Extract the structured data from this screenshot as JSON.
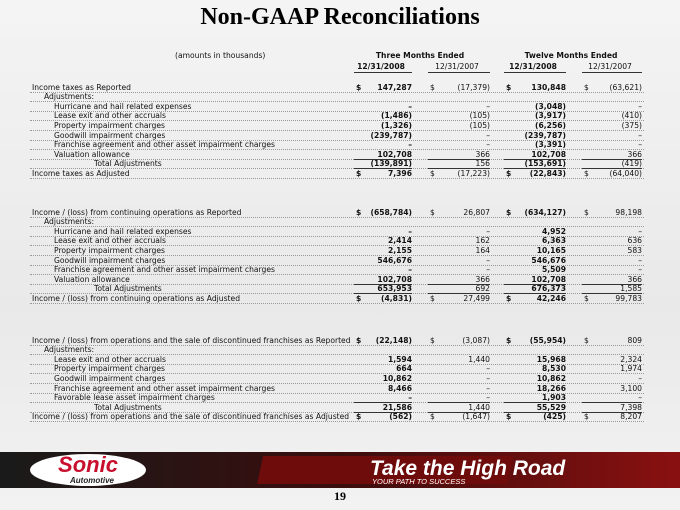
{
  "header": {
    "title": "Non-GAAP Reconciliations",
    "note": "(amounts in thousands)"
  },
  "table": {
    "currency": "$",
    "groups": [
      "Three Months Ended",
      "Twelve Months Ended"
    ],
    "columns": [
      "12/31/2008",
      "12/31/2007",
      "12/31/2008",
      "12/31/2007"
    ],
    "sections": [
      {
        "reported": {
          "label": "Income taxes as Reported",
          "cells": [
            "147,287",
            "(17,379)",
            "130,848",
            "(63,621)"
          ]
        },
        "adjustments_label": "Adjustments:",
        "items": [
          {
            "label": "Hurricane and hail related expenses",
            "cells": [
              "–",
              "–",
              "(3,048)",
              "–"
            ]
          },
          {
            "label": "Lease exit and other accruals",
            "cells": [
              "(1,486)",
              "(105)",
              "(3,917)",
              "(410)"
            ]
          },
          {
            "label": "Property impairment charges",
            "cells": [
              "(1,326)",
              "(105)",
              "(6,256)",
              "(375)"
            ]
          },
          {
            "label": "Goodwill impairment charges",
            "cells": [
              "(239,787)",
              "–",
              "(239,787)",
              "–"
            ]
          },
          {
            "label": "Franchise agreement and other asset impairment charges",
            "cells": [
              "–",
              "–",
              "(3,391)",
              "–"
            ]
          },
          {
            "label": "Valuation allowance",
            "cells": [
              "102,708",
              "366",
              "102,708",
              "366"
            ]
          }
        ],
        "total": {
          "label": "Total Adjustments",
          "cells": [
            "(139,891)",
            "156",
            "(153,691)",
            "(419)"
          ]
        },
        "adjusted": {
          "label": "Income taxes as Adjusted",
          "cells": [
            "7,396",
            "(17,223)",
            "(22,843)",
            "(64,040)"
          ]
        }
      },
      {
        "reported": {
          "label": "Income / (loss) from continuing operations as Reported",
          "cells": [
            "(658,784)",
            "26,807",
            "(634,127)",
            "98,198"
          ]
        },
        "adjustments_label": "Adjustments:",
        "items": [
          {
            "label": "Hurricane and hail related expenses",
            "cells": [
              "–",
              "–",
              "4,952",
              "–"
            ]
          },
          {
            "label": "Lease exit and other accruals",
            "cells": [
              "2,414",
              "162",
              "6,363",
              "636"
            ]
          },
          {
            "label": "Property impairment charges",
            "cells": [
              "2,155",
              "164",
              "10,165",
              "583"
            ]
          },
          {
            "label": "Goodwill impairment charges",
            "cells": [
              "546,676",
              "–",
              "546,676",
              "–"
            ]
          },
          {
            "label": "Franchise agreement and other asset impairment charges",
            "cells": [
              "–",
              "–",
              "5,509",
              "–"
            ]
          },
          {
            "label": "Valuation allowance",
            "cells": [
              "102,708",
              "366",
              "102,708",
              "366"
            ]
          }
        ],
        "total": {
          "label": "Total Adjustments",
          "cells": [
            "653,953",
            "692",
            "676,373",
            "1,585"
          ]
        },
        "adjusted": {
          "label": "Income / (loss) from continuing operations as Adjusted",
          "cells": [
            "(4,831)",
            "27,499",
            "42,246",
            "99,783"
          ]
        }
      },
      {
        "reported": {
          "label": "Income / (loss) from operations and the sale of discontinued franchises as Reported",
          "cells": [
            "(22,148)",
            "(3,087)",
            "(55,954)",
            "809"
          ]
        },
        "adjustments_label": "Adjustments:",
        "items": [
          {
            "label": "Lease exit and other accruals",
            "cells": [
              "1,594",
              "1,440",
              "15,968",
              "2,324"
            ]
          },
          {
            "label": "Property impairment charges",
            "cells": [
              "664",
              "–",
              "8,530",
              "1,974"
            ]
          },
          {
            "label": "Goodwill impairment charges",
            "cells": [
              "10,862",
              "–",
              "10,862",
              "–"
            ]
          },
          {
            "label": "Franchise agreement and other asset impairment charges",
            "cells": [
              "8,466",
              "–",
              "18,266",
              "3,100"
            ]
          },
          {
            "label": "Favorable lease asset impairment charges",
            "cells": [
              "–",
              "–",
              "1,903",
              "–"
            ]
          }
        ],
        "total": {
          "label": "Total Adjustments",
          "cells": [
            "21,586",
            "1,440",
            "55,529",
            "7,398"
          ]
        },
        "adjusted": {
          "label": "Income / (loss) from operations and the sale of discontinued franchises as Adjusted",
          "cells": [
            "(562)",
            "(1,647)",
            "(425)",
            "8,207"
          ]
        }
      }
    ]
  },
  "footer": {
    "logo": "Sonic",
    "logo_sub": "Automotive",
    "tagline": "Take the High Road",
    "slogan": "YOUR PATH TO SUCCESS",
    "page": "19"
  }
}
